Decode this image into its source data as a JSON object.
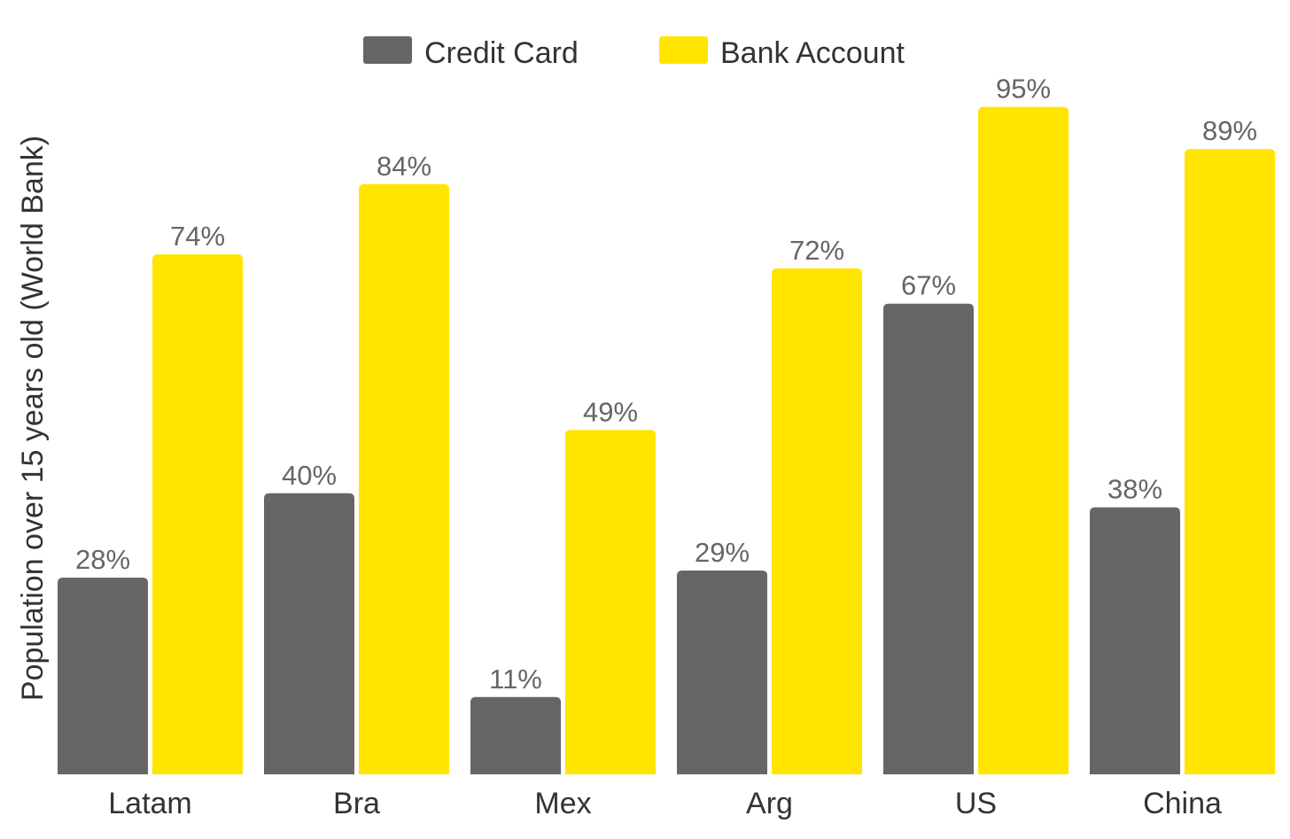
{
  "chart_data": {
    "type": "bar",
    "title": "",
    "xlabel": "",
    "ylabel": "Population over 15 years old (World Bank)",
    "categories": [
      "Latam",
      "Bra",
      "Mex",
      "Arg",
      "US",
      "China"
    ],
    "series": [
      {
        "name": "Credit Card",
        "color": "#666666",
        "values": [
          28,
          40,
          11,
          29,
          67,
          38
        ],
        "labels": [
          "28%",
          "40%",
          "11%",
          "29%",
          "67%",
          "38%"
        ]
      },
      {
        "name": "Bank Account",
        "color": "#FFE500",
        "values": [
          74,
          84,
          49,
          72,
          95,
          89
        ],
        "labels": [
          "74%",
          "84%",
          "49%",
          "72%",
          "95%",
          "89%"
        ]
      }
    ],
    "ylim": [
      0,
      100
    ],
    "grid": false,
    "legend_position": "top-center"
  }
}
